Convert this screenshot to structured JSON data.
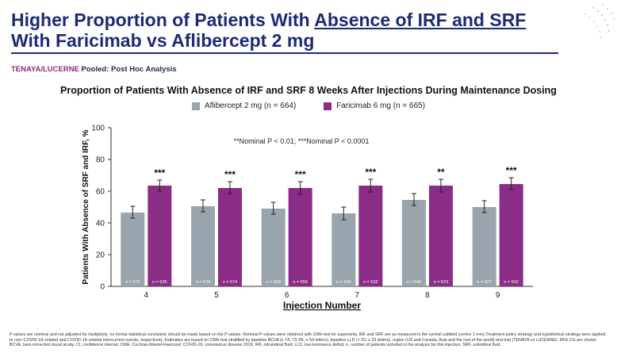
{
  "slide": {
    "title_line1_plain": "Higher Proportion of Patients With ",
    "title_line1_underlined": "Absence of IRF and SRF",
    "title_line2": "With Faricimab vs Aflibercept 2 mg",
    "trial_tenaya": "TENAYA",
    "trial_sep": "/",
    "trial_lucerne": "LUCERNE",
    "trial_rest": " Pooled: Post Hoc Analysis",
    "footnote": "P values are nominal and not adjusted for multiplicity; no formal statistical conclusion should be made based on the P values. Nominal P values were obtained with CMH test for superiority. IRF and SRF are as measured in the central subfield (centre 1 mm).Treatment policy strategy and hypothetical strategy were applied to non–COVID-19–related and COVID-19–related intercurrent events, respectively. Estimates are based on CMH test stratified by baseline BCVA (≥ 74, 73–55, ≤ 54 letters), baseline LLD (< 33, ≥ 33 letters), region (US and Canada, Asia and the rest of the world) and trial (TENAYA vs LUCERNE). 95% CIs are shown. BCVA, best-corrected visual acuity; CI, confidence interval; CMH, Cochran-Mantel-Haenszel; COVID-19, coronavirus disease 2019; IRF, intraretinal fluid; LLD, low-luminance deficit; n, number of patients included in the analysis for this injection; SRF, subretinal fluid.",
    "colors": {
      "title": "#1e2a78",
      "trial": "#8e2a80"
    }
  },
  "chart_data": {
    "type": "bar",
    "title": "Proportion of Patients With Absence of IRF and SRF 8 Weeks After Injections During Maintenance Dosing",
    "xlabel": "Injection Number",
    "ylabel": "Patients With Absence of SRF and IRF, %",
    "ylim": [
      0,
      100
    ],
    "yticks": [
      0,
      20,
      40,
      60,
      80,
      100
    ],
    "categories": [
      "4",
      "5",
      "6",
      "7",
      "8",
      "9"
    ],
    "annotation": "**Nominal P < 0.01; ***Nominal P < 0.0001",
    "series": [
      {
        "name": "Aflibercept 2 mg (n = 664)",
        "color": "#9aa4ad",
        "values": [
          46.5,
          50.5,
          49,
          46,
          54.5,
          50
        ],
        "ci_low": [
          43,
          47,
          45.5,
          42,
          51,
          46.5
        ],
        "ci_high": [
          50.5,
          54.5,
          53,
          50,
          58.5,
          54
        ],
        "n_labels": [
          "n = 572",
          "n = 579",
          "n = 550",
          "n = 540",
          "n = 542",
          "n = 527"
        ]
      },
      {
        "name": "Faricimab 6 mg (n = 665)",
        "color": "#8b2c86",
        "values": [
          63.5,
          62,
          62,
          63.5,
          63.5,
          64.5
        ],
        "ci_low": [
          60,
          58.5,
          58,
          59.5,
          59.5,
          61
        ],
        "ci_high": [
          67,
          66,
          66,
          67.5,
          67.5,
          68.5
        ],
        "n_labels": [
          "n = 626",
          "n = 574",
          "n = 556",
          "n = 532",
          "n = 523",
          "n = 502"
        ]
      }
    ],
    "significance": [
      "***",
      "***",
      "***",
      "***",
      "**",
      "***"
    ]
  }
}
